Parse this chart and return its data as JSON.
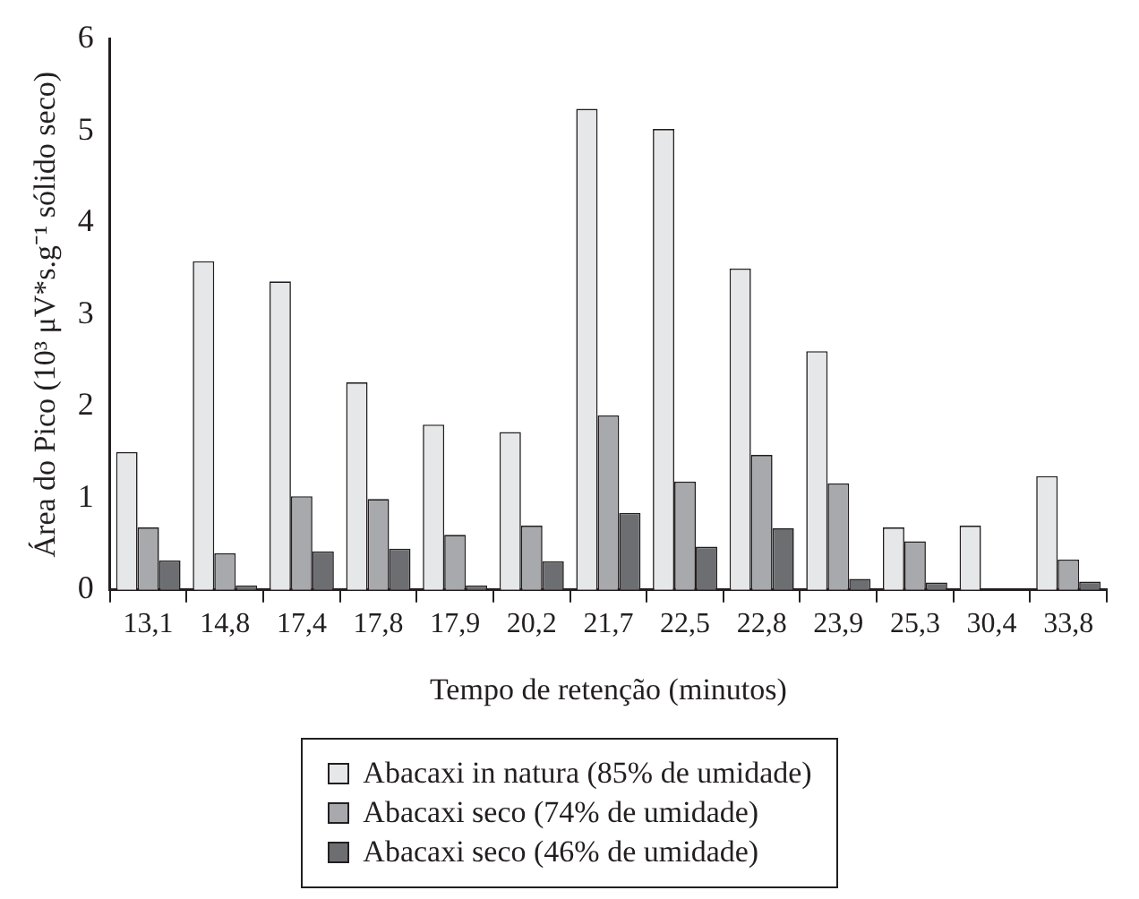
{
  "chart_data": {
    "type": "bar",
    "xlabel": "Tempo de retenção (minutos)",
    "ylabel": "Área do Pico (10³ μV*s.g⁻¹ sólido seco)",
    "categories": [
      "13,1",
      "14,8",
      "17,4",
      "17,8",
      "17,9",
      "20,2",
      "21,7",
      "22,5",
      "22,8",
      "23,9",
      "25,3",
      "30,4",
      "33,8"
    ],
    "series": [
      {
        "name": "Abacaxi in natura (85% de umidade)",
        "color": "#e6e7e8",
        "values": [
          1.5,
          3.58,
          3.36,
          2.26,
          1.8,
          1.72,
          5.24,
          5.02,
          3.5,
          2.6,
          0.68,
          0.7,
          1.24
        ]
      },
      {
        "name": "Abacaxi seco (74% de umidade)",
        "color": "#a7a9ac",
        "values": [
          0.68,
          0.4,
          1.02,
          0.99,
          0.6,
          0.7,
          1.9,
          1.18,
          1.47,
          1.16,
          0.53,
          0,
          0.33
        ]
      },
      {
        "name": "Abacaxi seco (46% de umidade)",
        "color": "#6d6e71",
        "values": [
          0.32,
          0.05,
          0.42,
          0.45,
          0.05,
          0.31,
          0.84,
          0.47,
          0.67,
          0.12,
          0.08,
          0,
          0.09
        ]
      }
    ],
    "ylim": [
      0,
      6
    ],
    "yticks": [
      0,
      1,
      2,
      3,
      4,
      5,
      6
    ],
    "grid": false,
    "legend": "bottom"
  }
}
